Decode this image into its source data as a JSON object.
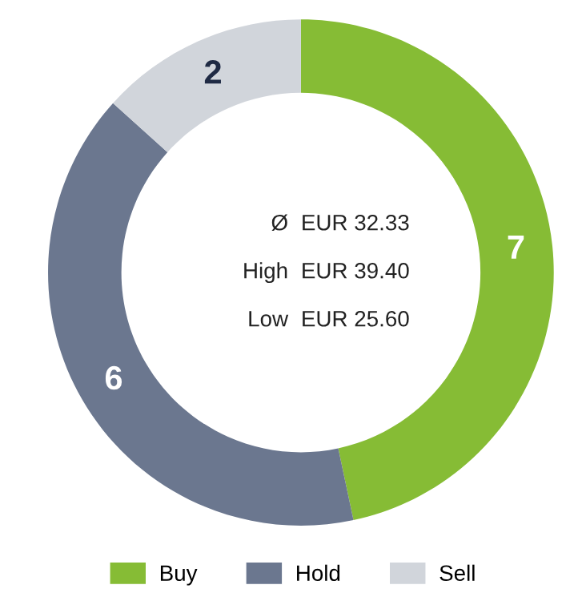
{
  "chart_data": {
    "type": "donut",
    "categories": [
      "Buy",
      "Hold",
      "Sell"
    ],
    "values": [
      7,
      6,
      2
    ],
    "colors": [
      "#86bc35",
      "#6b778f",
      "#d1d5db"
    ],
    "data_labels": true,
    "legend": "bottom",
    "annotations": [
      "Ø",
      "EUR 32.33",
      "High",
      "EUR 39.40",
      "Low",
      "EUR 25.60"
    ]
  }
}
